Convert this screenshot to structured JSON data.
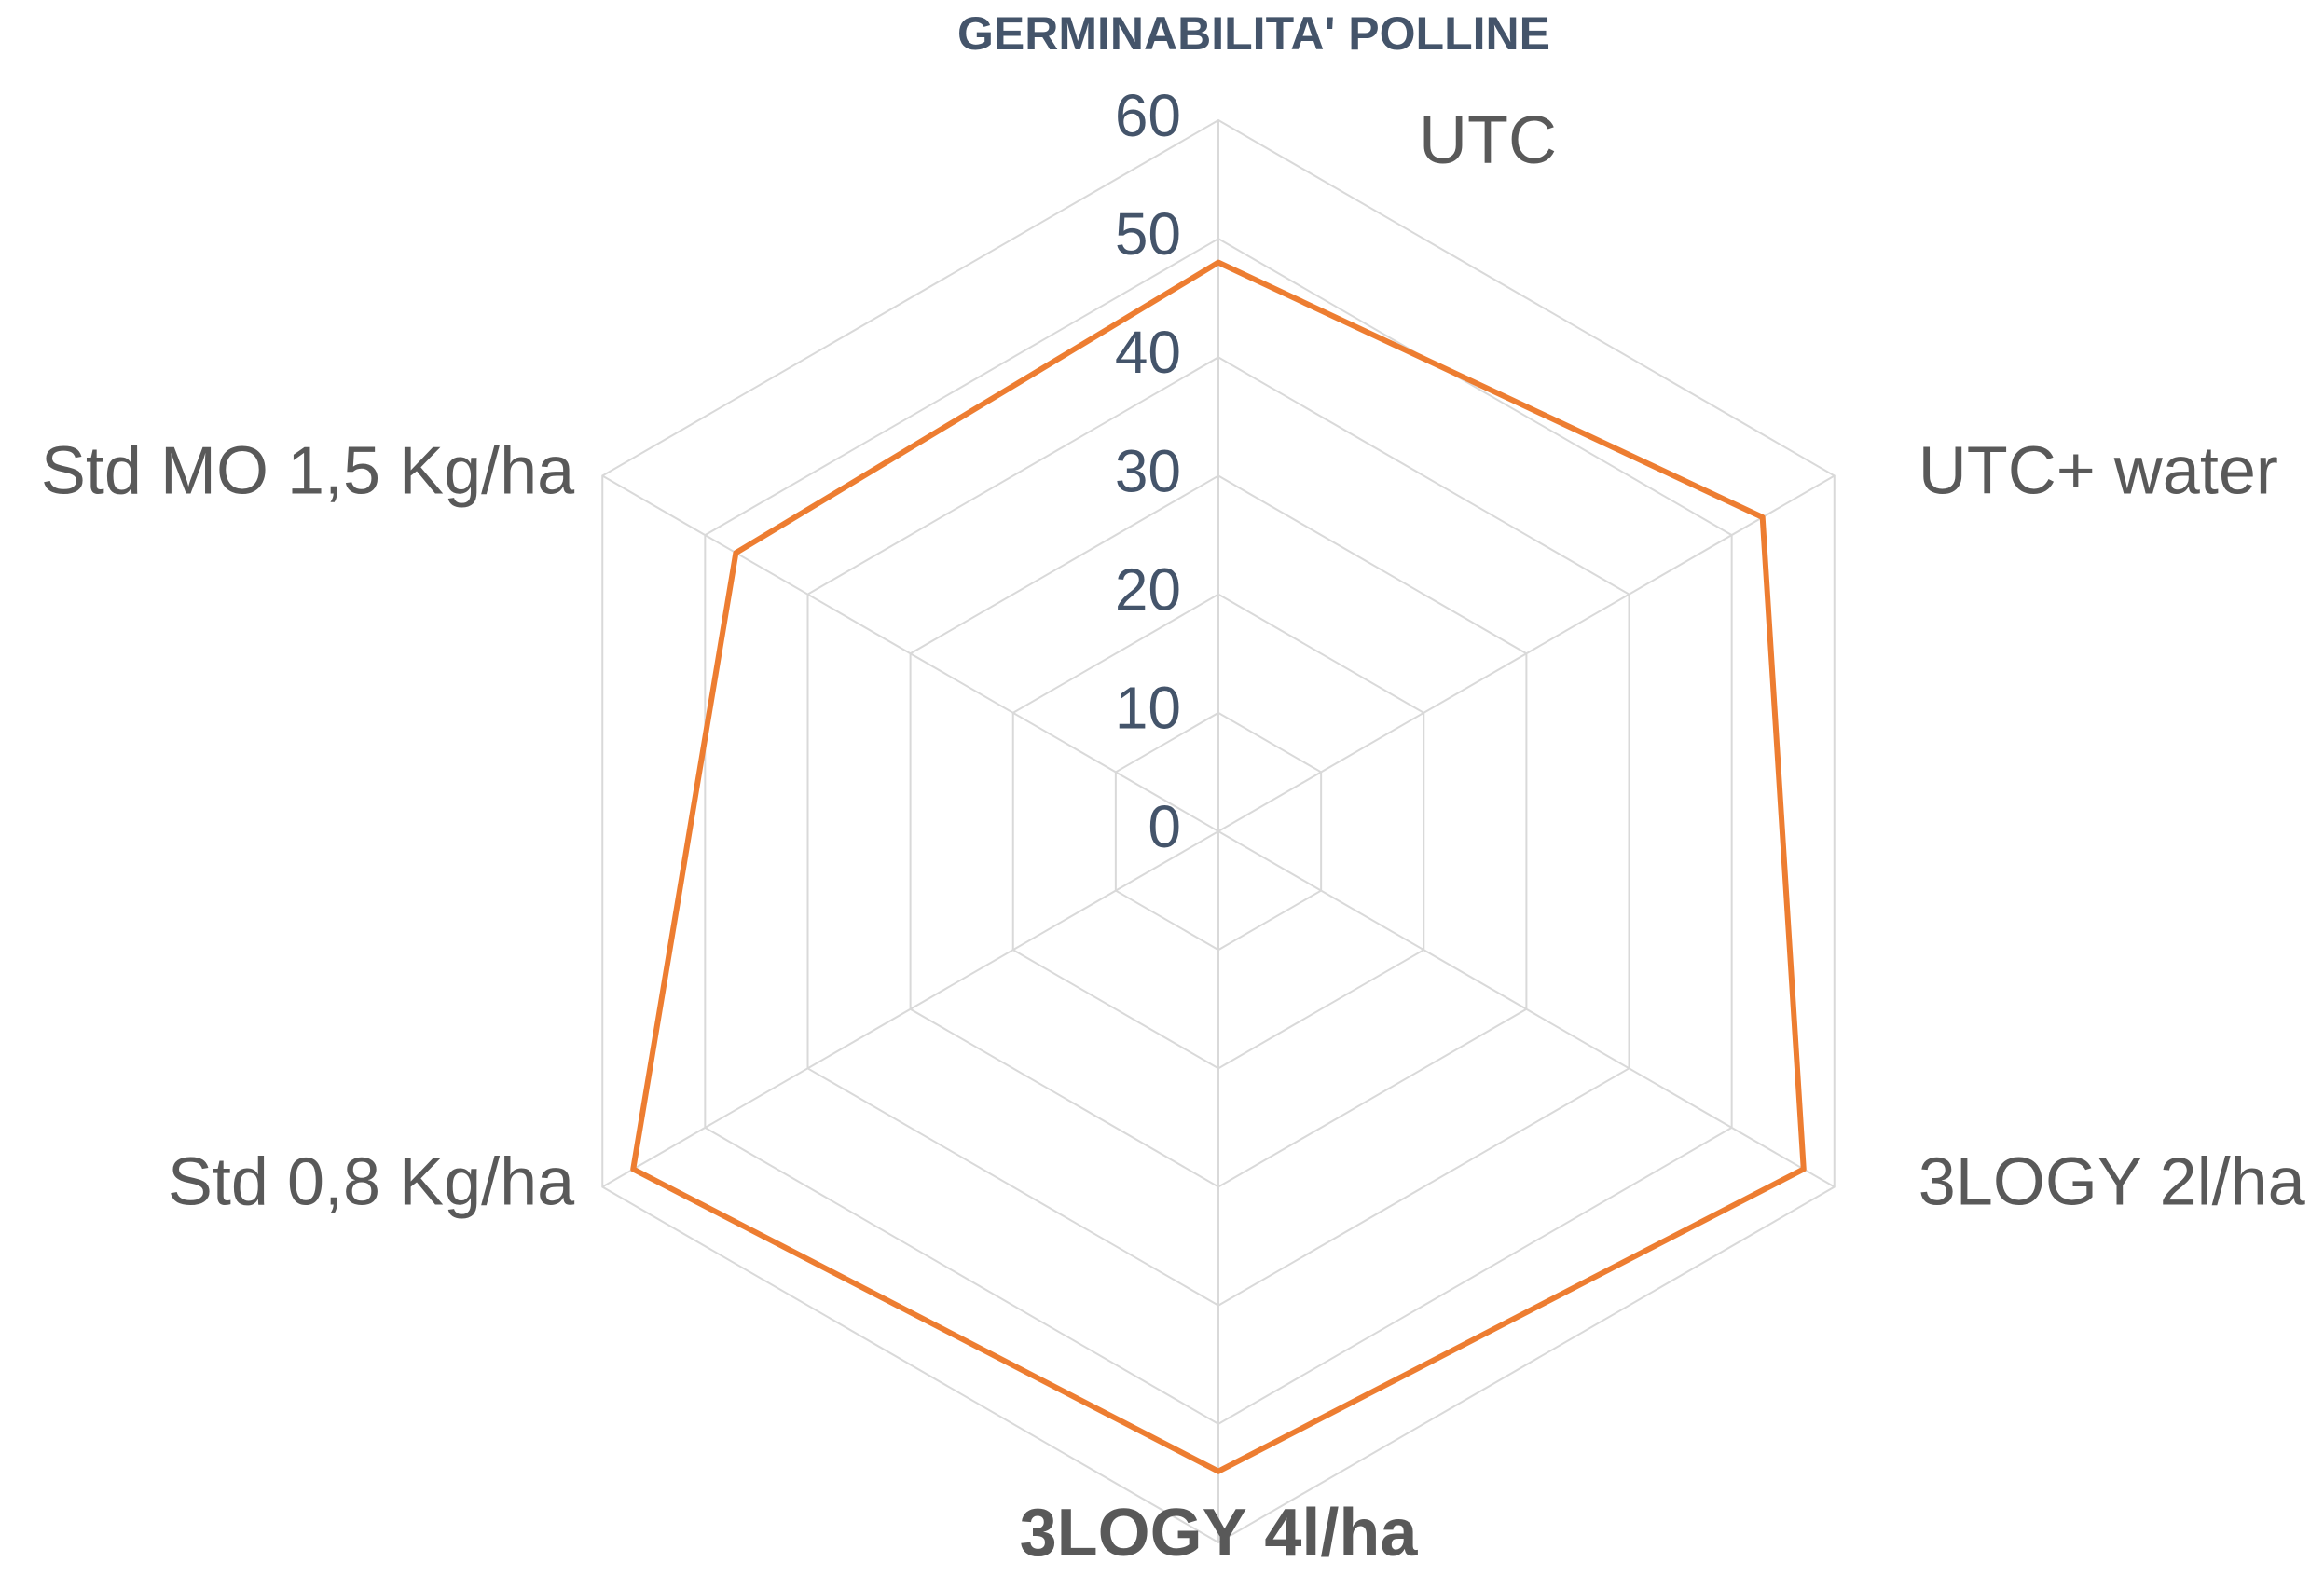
{
  "chart_data": {
    "type": "radar",
    "title": "GERMINABILITA' POLLINE",
    "categories": [
      "UTC",
      "UTC+ water",
      "3LOGY 2l/ha",
      "3LOGY 4l/ha",
      "Std 0,8 Kg/ha",
      "Std MO 1,5 Kg/ha"
    ],
    "series": [
      {
        "name": "GERMINABILITA' POLLINE",
        "color": "#ed7d31",
        "values": [
          48,
          53,
          57,
          54,
          57,
          47
        ]
      }
    ],
    "ylim": [
      0,
      60
    ],
    "yticks": [
      0,
      10,
      20,
      30,
      40,
      50,
      60
    ],
    "grid": true
  }
}
